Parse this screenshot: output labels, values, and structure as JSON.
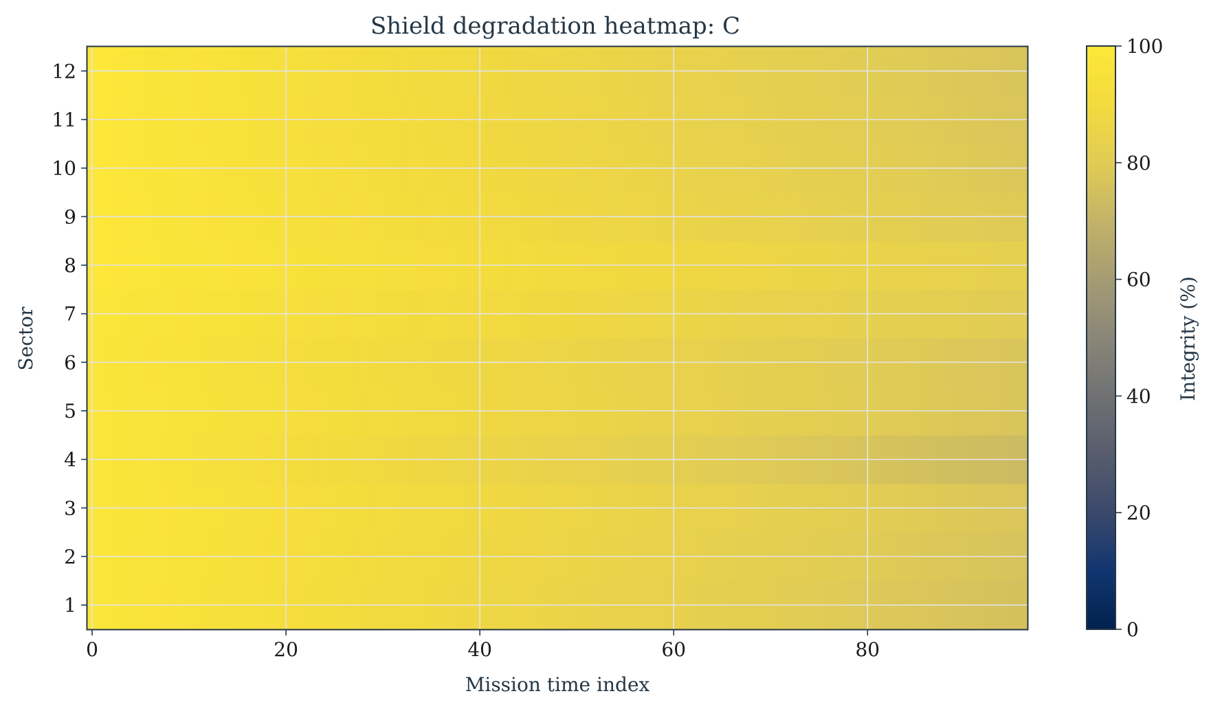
{
  "chart_data": {
    "type": "heatmap",
    "title": "Shield degradation heatmap: C",
    "xlabel": "Mission time index",
    "ylabel": "Sector",
    "x_range": [
      0,
      96
    ],
    "y_range": [
      1,
      12
    ],
    "x_ticks": [
      "0",
      "20",
      "40",
      "60",
      "80"
    ],
    "y_ticks": [
      "1",
      "2",
      "3",
      "4",
      "5",
      "6",
      "7",
      "8",
      "9",
      "10",
      "11",
      "12"
    ],
    "grid": true,
    "colorbar": {
      "label": "Integrity (%)",
      "range": [
        0,
        100
      ],
      "ticks": [
        "0",
        "20",
        "40",
        "60",
        "80",
        "100"
      ],
      "colormap": "cividis"
    },
    "sectors": [
      {
        "sector": 1,
        "start": 98.5,
        "end": 75.5
      },
      {
        "sector": 2,
        "start": 98.5,
        "end": 76.5
      },
      {
        "sector": 3,
        "start": 98.5,
        "end": 77.5
      },
      {
        "sector": 4,
        "start": 98.5,
        "end": 73.0
      },
      {
        "sector": 5,
        "start": 98.5,
        "end": 77.0
      },
      {
        "sector": 6,
        "start": 98.0,
        "end": 77.0
      },
      {
        "sector": 7,
        "start": 98.5,
        "end": 80.0
      },
      {
        "sector": 8,
        "start": 99.5,
        "end": 82.5
      },
      {
        "sector": 9,
        "start": 99.5,
        "end": 79.0
      },
      {
        "sector": 10,
        "start": 99.5,
        "end": 78.0
      },
      {
        "sector": 11,
        "start": 99.5,
        "end": 77.5
      },
      {
        "sector": 12,
        "start": 99.5,
        "end": 77.0
      }
    ]
  },
  "colors": {
    "grid": "#e4e4e4",
    "text": "#253746",
    "tick_text": "#1a1a1a",
    "axis": "#253746"
  }
}
